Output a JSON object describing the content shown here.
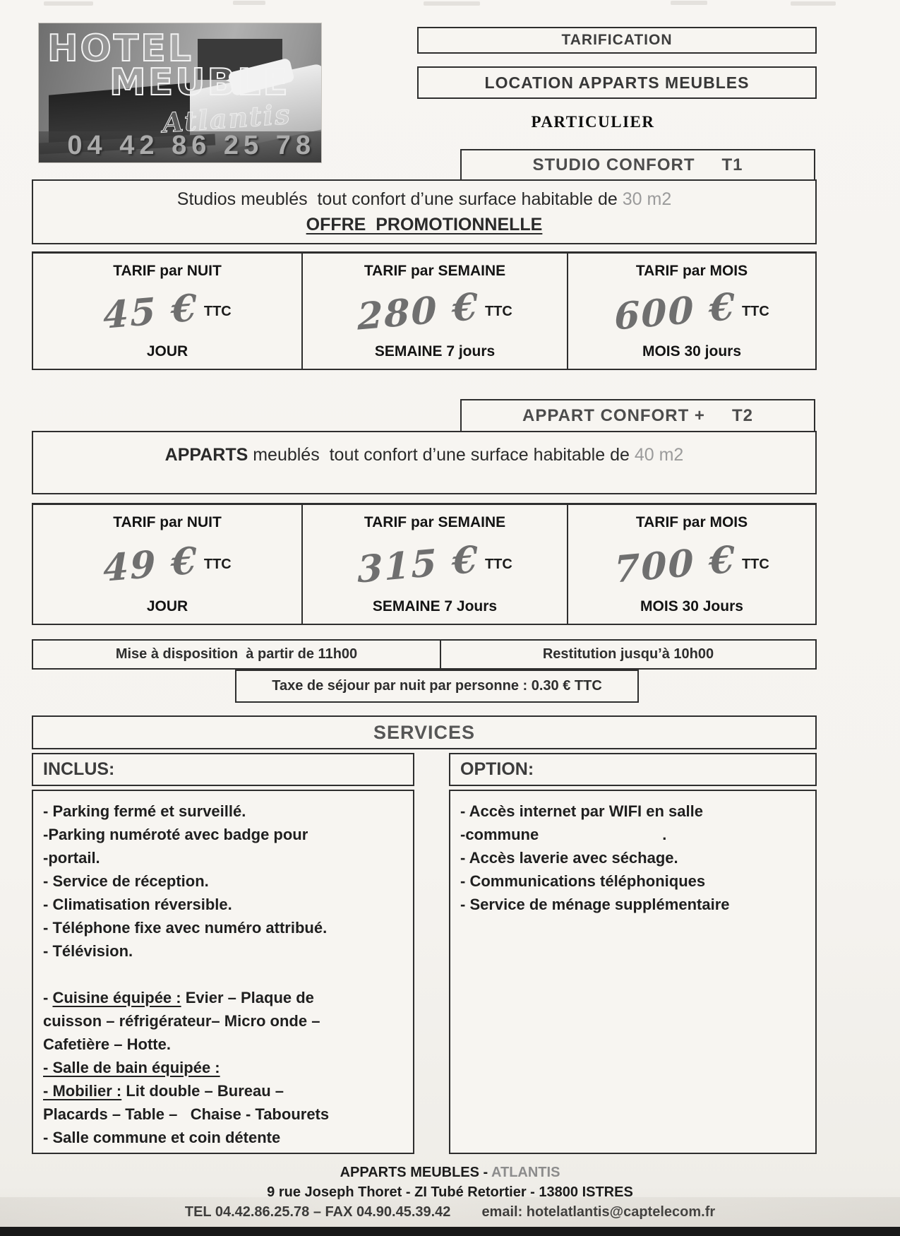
{
  "logo": {
    "line1": "HOTEL",
    "line2": "MEUBLE",
    "script": "Atlantis",
    "phone": "04 42 86 25 78"
  },
  "header": {
    "tarification": "TARIFICATION",
    "location": "LOCATION APPARTS MEUBLES",
    "particulier": "PARTICULIER"
  },
  "studio": {
    "title": "STUDIO CONFORT",
    "type": "T1",
    "desc_lines": [
      [
        {
          "t": "Studios meublés  tout confort d’une surface habitable de "
        },
        {
          "t": "30 m2",
          "gray": true
        }
      ],
      [
        {
          "t": "OFFRE  PROMOTIONNELLE",
          "b": true,
          "u": true
        }
      ]
    ]
  },
  "appart": {
    "title": "APPART CONFORT +",
    "type": "T2",
    "desc_lines": [
      [
        {
          "t": "APPARTS",
          "b": true
        },
        {
          "t": " meublés  tout confort d’une surface habitable de "
        },
        {
          "t": "40 m2",
          "gray": true
        }
      ]
    ]
  },
  "tables": [
    {
      "cells": [
        {
          "header": "TARIF par NUIT",
          "price": "45 €",
          "ttc": "TTC",
          "label": "JOUR"
        },
        {
          "header": "TARIF par SEMAINE",
          "price": "280 €",
          "ttc": "TTC",
          "label": "SEMAINE 7 jours"
        },
        {
          "header": "TARIF par MOIS",
          "price": "600 €",
          "ttc": "TTC",
          "label": "MOIS 30 jours"
        }
      ]
    },
    {
      "cells": [
        {
          "header": "TARIF par NUIT",
          "price": "49 €",
          "ttc": "TTC",
          "label": "JOUR"
        },
        {
          "header": "TARIF par SEMAINE",
          "price": "315 €",
          "ttc": "TTC",
          "label": "SEMAINE 7 Jours"
        },
        {
          "header": "TARIF par MOIS",
          "price": "700 €",
          "ttc": "TTC",
          "label": "MOIS 30 Jours"
        }
      ]
    }
  ],
  "availability": {
    "left": "Mise à disposition  à partir de 11h00",
    "right": "Restitution jusqu’à 10h00"
  },
  "tax": {
    "text": "Taxe de séjour par nuit par personne : 0.30 € TTC"
  },
  "services": {
    "title": "SERVICES",
    "inclus_label": "INCLUS:",
    "option_label": "OPTION:",
    "inclus_lines": [
      [
        {
          "t": "- Parking fermé et surveillé."
        }
      ],
      [
        {
          "t": "-Parking numéroté avec badge pour"
        }
      ],
      [
        {
          "t": "-portail."
        }
      ],
      [
        {
          "t": "- Service de réception."
        }
      ],
      [
        {
          "t": "- Climatisation réversible."
        }
      ],
      [
        {
          "t": "- Téléphone fixe avec numéro attribué."
        }
      ],
      [
        {
          "t": "- Télévision."
        }
      ],
      [],
      [
        {
          "t": "- "
        },
        {
          "t": "Cuisine équipée :",
          "u": true
        },
        {
          "t": " Evier – Plaque de"
        }
      ],
      [
        {
          "t": "cuisson – réfrigérateur– Micro onde –"
        }
      ],
      [
        {
          "t": "Cafetière – Hotte."
        }
      ],
      [
        {
          "t": "- Salle de bain équipée :",
          "u": true
        }
      ],
      [
        {
          "t": "- Mobilier :",
          "u": true
        },
        {
          "t": " Lit double – Bureau –"
        }
      ],
      [
        {
          "t": "Placards – Table –   Chaise - Tabourets"
        }
      ],
      [
        {
          "t": "- Salle commune et coin détente"
        }
      ]
    ],
    "option_lines": [
      [
        {
          "t": "- Accès internet par WIFI en salle"
        }
      ],
      [
        {
          "t": "-commune"
        },
        {
          "t": ".",
          "gap": 175
        }
      ],
      [
        {
          "t": "- Accès laverie avec séchage."
        }
      ],
      [
        {
          "t": "- Communications téléphoniques"
        }
      ],
      [
        {
          "t": "- Service de ménage supplémentaire"
        }
      ]
    ]
  },
  "footer": {
    "line1_black": "APPARTS MEUBLES - ",
    "line1_gray": "ATLANTIS",
    "line2": "9 rue Joseph Thoret - ZI Tubé Retortier - 13800 ISTRES",
    "line3_left": "TEL 04.42.86.25.78 – FAX 04.90.45.39.42",
    "line3_right": "email: hotelatlantis@captelecom.fr"
  },
  "colors": {
    "border": "#2e2e2e",
    "price_ink": "#6f6f6f",
    "gray_text": "#9b9b9b",
    "page_bg": "#f5f3ef"
  }
}
